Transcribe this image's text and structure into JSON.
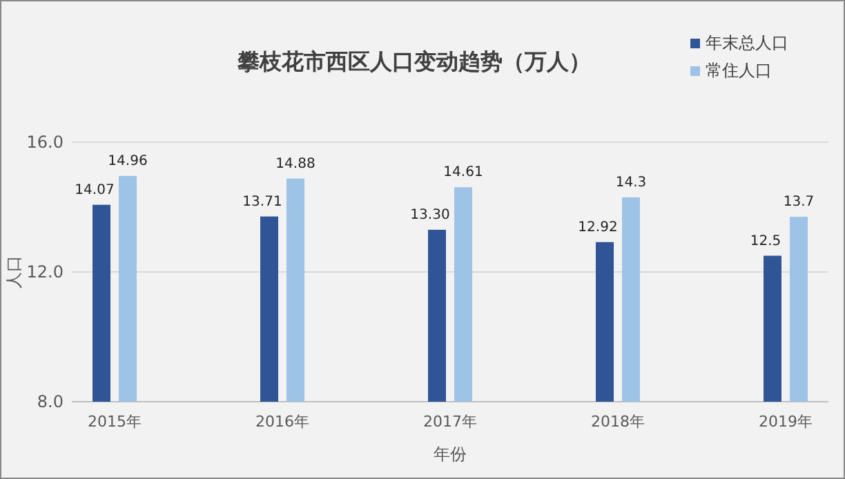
{
  "chart_data": {
    "type": "bar",
    "title": "攀枝花市西区人口变动趋势（万人）",
    "xlabel": "年份",
    "ylabel": "人口",
    "categories": [
      "2015年",
      "2016年",
      "2017年",
      "2018年",
      "2019年"
    ],
    "series": [
      {
        "name": "年末总人口",
        "color": "#2f5597",
        "values": [
          14.07,
          13.71,
          13.3,
          12.92,
          12.5
        ],
        "value_labels": [
          "14.07",
          "13.71",
          "13.30",
          "12.92",
          "12.5"
        ]
      },
      {
        "name": "常住人口",
        "color": "#9dc3e6",
        "values": [
          14.96,
          14.88,
          14.61,
          14.3,
          13.7
        ],
        "value_labels": [
          "14.96",
          "14.88",
          "14.61",
          "14.3",
          "13.7"
        ]
      }
    ],
    "ylim": [
      8,
      16
    ],
    "yticks": [
      {
        "value": 8,
        "label": "8.0"
      },
      {
        "value": 12,
        "label": "12.0"
      },
      {
        "value": 16,
        "label": "16.0"
      }
    ],
    "grid": "y",
    "legend": "top right"
  }
}
